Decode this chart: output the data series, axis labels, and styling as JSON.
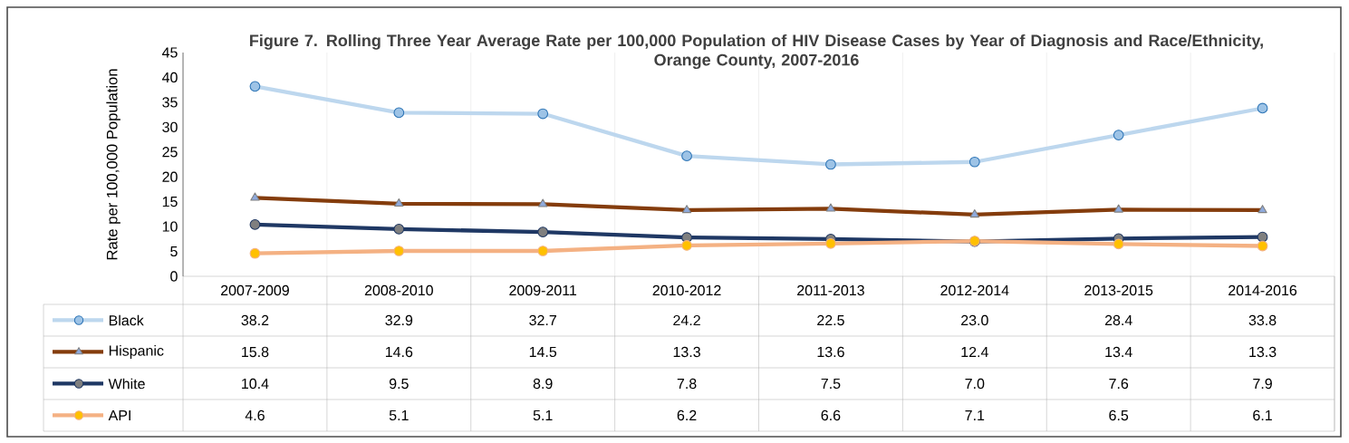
{
  "chart_data": {
    "type": "line",
    "title": "Figure 7. Rolling Three Year Average Rate per 100,000 Population of HIV Disease Cases by Year of Diagnosis and Race/Ethnicity, Orange County, 2007-2016",
    "ylabel": "Rate per 100,000 Population",
    "categories": [
      "2007-2009",
      "2008-2010",
      "2009-2011",
      "2010-2012",
      "2011-2013",
      "2012-2014",
      "2013-2015",
      "2014-2016"
    ],
    "series": [
      {
        "name": "Black",
        "color": "#bdd7ee",
        "marker": "circle",
        "values": [
          38.2,
          32.9,
          32.7,
          24.2,
          22.5,
          23.0,
          28.4,
          33.8
        ],
        "value_labels": [
          "38.2",
          "32.9",
          "32.7",
          "24.2",
          "22.5",
          "23.0",
          "28.4",
          "33.8"
        ]
      },
      {
        "name": "Hispanic",
        "color": "#843c0c",
        "marker": "triangle",
        "values": [
          15.8,
          14.6,
          14.5,
          13.3,
          13.6,
          12.4,
          13.4,
          13.3
        ],
        "value_labels": [
          "15.8",
          "14.6",
          "14.5",
          "13.3",
          "13.6",
          "12.4",
          "13.4",
          "13.3"
        ]
      },
      {
        "name": "White",
        "color": "#1f3864",
        "marker": "circle",
        "values": [
          10.4,
          9.5,
          8.9,
          7.8,
          7.5,
          7.0,
          7.6,
          7.9
        ],
        "value_labels": [
          "10.4",
          "9.5",
          "8.9",
          "7.8",
          "7.5",
          "7.0",
          "7.6",
          "7.9"
        ]
      },
      {
        "name": "API",
        "color": "#f4b183",
        "marker": "circle",
        "values": [
          4.6,
          5.1,
          5.1,
          6.2,
          6.6,
          7.1,
          6.5,
          6.1
        ],
        "value_labels": [
          "4.6",
          "5.1",
          "5.1",
          "6.2",
          "6.6",
          "7.1",
          "6.5",
          "6.1"
        ]
      }
    ],
    "ylim": [
      0,
      45
    ],
    "yticks": [
      0,
      5,
      10,
      15,
      20,
      25,
      30,
      35,
      40,
      45
    ],
    "grid": "x",
    "legend": "bottom"
  }
}
